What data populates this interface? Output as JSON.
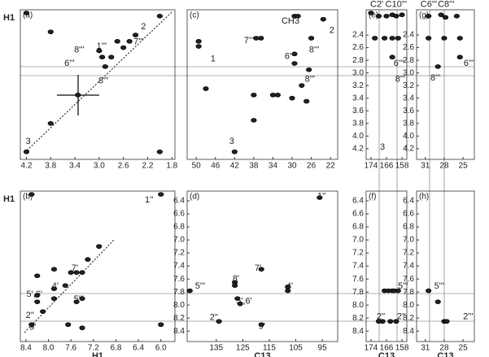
{
  "chart_data": [
    {
      "type": "scatter",
      "title": "(a)",
      "ylabel": "H1",
      "xlim": [
        4.3,
        1.75
      ],
      "ylim": [
        4.37,
        2.0
      ],
      "xticks": [
        4.2,
        3.8,
        3.4,
        {
          "value": 3,
          "label": "3.0"
        },
        2.6,
        2.2,
        1.8
      ],
      "x": [
        4.2,
        4.2,
        3.8,
        3.8,
        2.0,
        2.0,
        2.5,
        2.6,
        2.9,
        2.95,
        2.8,
        3.0,
        2.7,
        2.4,
        3.35
      ],
      "y": [
        2.05,
        4.25,
        3.8,
        2.35,
        4.25,
        2.1,
        2.5,
        2.6,
        2.9,
        2.75,
        2.75,
        2.65,
        2.5,
        2.4,
        3.35
      ],
      "annotations": [
        {
          "text": "2",
          "x": 2.27,
          "y": 2.27
        },
        {
          "text": "8'''",
          "x": 3.33,
          "y": 2.64
        },
        {
          "text": "1'''",
          "x": 2.96,
          "y": 2.58
        },
        {
          "text": "7'''",
          "x": 2.35,
          "y": 2.51
        },
        {
          "text": "6'''",
          "x": 3.49,
          "y": 2.85
        },
        {
          "text": "8'''",
          "x": 2.93,
          "y": 3.13
        },
        {
          "text": "3",
          "x": 4.17,
          "y": 4.09
        }
      ]
    },
    {
      "type": "scatter",
      "title": "(c)",
      "xlim": [
        51.9,
        20.5
      ],
      "ylim": [
        4.37,
        2.0
      ],
      "xticks": [
        50,
        46,
        42,
        38,
        34,
        30,
        26,
        22
      ],
      "x": [
        49.5,
        49.5,
        37.5,
        36.5,
        29.5,
        29.5,
        26,
        26.5,
        29.5,
        28.8,
        23.5,
        42,
        38,
        34,
        33,
        30,
        28,
        27,
        38,
        48
      ],
      "y": [
        2.5,
        2.58,
        2.45,
        2.45,
        2.7,
        2.85,
        2.45,
        2.95,
        2.1,
        2.1,
        2.15,
        4.25,
        3.35,
        3.35,
        3.35,
        3.4,
        3.2,
        3.45,
        3.75,
        3.25
      ],
      "annotations": [
        {
          "text": "CH3",
          "x": 30.35,
          "y": 2.18
        },
        {
          "text": "2",
          "x": 21.7,
          "y": 2.33
        },
        {
          "text": "7'''",
          "x": 39.0,
          "y": 2.49
        },
        {
          "text": "1",
          "x": 46.5,
          "y": 2.78
        },
        {
          "text": "6'''",
          "x": 30.5,
          "y": 2.74
        },
        {
          "text": "8'''",
          "x": 25.4,
          "y": 2.64
        },
        {
          "text": "8'''",
          "x": 26.3,
          "y": 3.1
        },
        {
          "text": "3",
          "x": 42.6,
          "y": 4.09
        }
      ]
    },
    {
      "type": "scatter",
      "title": "(e)",
      "xlim": [
        176.5,
        155.5
      ],
      "ylim": [
        4.37,
        2.0
      ],
      "xticks": [
        174,
        166,
        158
      ],
      "yticks": [
        2.4,
        2.6,
        2.8,
        {
          "value": 3,
          "label": "3.0"
        },
        3.2,
        3.4,
        3.6,
        3.8,
        {
          "value": 4,
          "label": "4.0"
        },
        4.2
      ],
      "x": [
        174,
        170,
        166,
        163,
        161,
        158,
        172,
        167,
        163,
        160,
        163
      ],
      "y": [
        2.05,
        2.1,
        2.1,
        2.08,
        2.1,
        2.08,
        2.45,
        2.45,
        2.45,
        2.45,
        2.75
      ],
      "annotations": [
        {
          "text": "C2'",
          "x": 171,
          "y": 1.92
        },
        {
          "text": "C10'''",
          "x": 161,
          "y": 1.92
        },
        {
          "text": "6'''",
          "x": 159.7,
          "y": 2.85
        },
        {
          "text": "8'''",
          "x": 158.9,
          "y": 3.1
        },
        {
          "text": "3",
          "x": 168.1,
          "y": 4.18
        }
      ]
    },
    {
      "type": "scatter",
      "title": "(g)",
      "xlim": [
        32.4,
        23.2
      ],
      "ylim": [
        4.37,
        2.0
      ],
      "xticks": [
        31,
        28,
        25
      ],
      "yticks": [
        2.4,
        2.6,
        2.8,
        {
          "value": 3,
          "label": "3.0"
        },
        3.2,
        3.4,
        3.6,
        3.8,
        {
          "value": 4,
          "label": "4.0"
        },
        4.2
      ],
      "x": [
        30.5,
        28.5,
        27.8,
        26,
        30.5,
        28,
        25.5,
        29,
        25.5
      ],
      "y": [
        2.1,
        2.08,
        2.12,
        2.1,
        2.45,
        2.45,
        2.45,
        2.9,
        2.75
      ],
      "annotations": [
        {
          "text": "C6'''",
          "x": 30.46,
          "y": 1.92
        },
        {
          "text": "C8'''",
          "x": 27.7,
          "y": 1.92
        },
        {
          "text": "6'''",
          "x": 24.1,
          "y": 2.85
        },
        {
          "text": "8'''",
          "x": 29.4,
          "y": 3.08
        }
      ]
    },
    {
      "type": "scatter",
      "title": "(b)",
      "ylabel": "H1",
      "xlabel": "H1",
      "xlim": [
        8.5,
        5.75
      ],
      "ylim": [
        8.56,
        6.25
      ],
      "xticks": [
        8.4,
        {
          "value": 8,
          "label": "8.0"
        },
        7.6,
        7.2,
        6.8,
        6.4,
        {
          "value": 6,
          "label": "6.0"
        }
      ],
      "x": [
        8.3,
        8.1,
        7.9,
        7.7,
        7.5,
        7.3,
        7.1,
        8.3,
        6.0,
        6.0,
        7.9,
        8.2,
        8.2,
        8.2,
        7.6,
        7.4,
        7.5,
        7.4,
        7.4,
        7.65,
        7.9
      ],
      "y": [
        8.3,
        8.1,
        7.9,
        7.7,
        7.5,
        7.3,
        7.1,
        6.3,
        6.3,
        8.3,
        7.75,
        7.55,
        7.85,
        7.95,
        7.5,
        7.5,
        7.95,
        7.9,
        8.35,
        8.3,
        7.45
      ],
      "annotations": [
        {
          "text": "1''",
          "x": 6.21,
          "y": 6.39
        },
        {
          "text": "7'",
          "x": 7.53,
          "y": 7.44
        },
        {
          "text": "4'",
          "x": 7.88,
          "y": 7.71
        },
        {
          "text": "5',6'",
          "x": 8.25,
          "y": 7.84
        },
        {
          "text": "5'''",
          "x": 7.46,
          "y": 7.91
        },
        {
          "text": "2''",
          "x": 8.33,
          "y": 8.16
        },
        {
          "text": "9'",
          "x": 8.28,
          "y": 8.34
        }
      ]
    },
    {
      "type": "scatter",
      "title": "(d)",
      "xlabel": "C13",
      "xlim": [
        146,
        89.2
      ],
      "ylim": [
        8.56,
        6.25
      ],
      "xticks": [
        135,
        125,
        115,
        105,
        95
      ],
      "yticks": [
        6.4,
        6.6,
        6.8,
        {
          "value": 7,
          "label": "7.0"
        },
        7.2,
        7.4,
        7.6,
        7.8,
        {
          "value": 8,
          "label": "8.0"
        },
        8.2,
        8.4
      ],
      "x": [
        96,
        118,
        128,
        128,
        108,
        108,
        145,
        127,
        126,
        134,
        118
      ],
      "y": [
        6.35,
        7.45,
        7.65,
        7.7,
        7.72,
        7.78,
        7.78,
        7.9,
        7.98,
        8.25,
        8.3
      ],
      "annotations": [
        {
          "text": "1''",
          "x": 95.3,
          "y": 6.33
        },
        {
          "text": "7'",
          "x": 119.3,
          "y": 7.44
        },
        {
          "text": "8'",
          "x": 127.6,
          "y": 7.6
        },
        {
          "text": "4'",
          "x": 107.3,
          "y": 7.71
        },
        {
          "text": "5'''",
          "x": 141.1,
          "y": 7.71
        },
        {
          "text": "5',6'",
          "x": 124.5,
          "y": 7.94
        },
        {
          "text": "2''",
          "x": 135.9,
          "y": 8.19
        },
        {
          "text": "9'",
          "x": 117.8,
          "y": 8.33
        }
      ]
    },
    {
      "type": "scatter",
      "title": "(f)",
      "xlabel": "C13",
      "xlim": [
        176.5,
        155.5
      ],
      "ylim": [
        8.56,
        6.25
      ],
      "xticks": [
        174,
        166,
        158
      ],
      "yticks": [
        6.4,
        6.6,
        6.8,
        {
          "value": 7,
          "label": "7.0"
        },
        7.2,
        7.4,
        7.6,
        7.8,
        {
          "value": 8,
          "label": "8.0"
        },
        8.2,
        8.4
      ],
      "x": [
        167,
        165,
        163,
        162,
        160,
        168,
        161,
        164,
        170
      ],
      "y": [
        7.78,
        7.78,
        7.78,
        7.78,
        7.78,
        8.25,
        8.25,
        8.25,
        8.25
      ],
      "annotations": [
        {
          "text": "5'''",
          "x": 157.5,
          "y": 7.71
        },
        {
          "text": "2''",
          "x": 168.9,
          "y": 8.18
        },
        {
          "text": "2''",
          "x": 158.4,
          "y": 8.18
        }
      ]
    },
    {
      "type": "scatter",
      "title": "(h)",
      "xlabel": "C13",
      "xlim": [
        32.4,
        23.2
      ],
      "ylim": [
        8.56,
        6.25
      ],
      "xticks": [
        31,
        28,
        25
      ],
      "yticks": [
        6.4,
        6.6,
        6.8,
        {
          "value": 7,
          "label": "7.0"
        },
        7.2,
        7.4,
        7.6,
        7.8,
        {
          "value": 8,
          "label": "8.0"
        },
        8.2,
        8.4
      ],
      "x": [
        30.5,
        28,
        27.6,
        29
      ],
      "y": [
        7.78,
        8.25,
        8.25,
        7.95
      ],
      "annotations": [
        {
          "text": "5'''",
          "x": 28.8,
          "y": 7.71
        },
        {
          "text": "2'''",
          "x": 24.2,
          "y": 8.18
        }
      ]
    }
  ]
}
